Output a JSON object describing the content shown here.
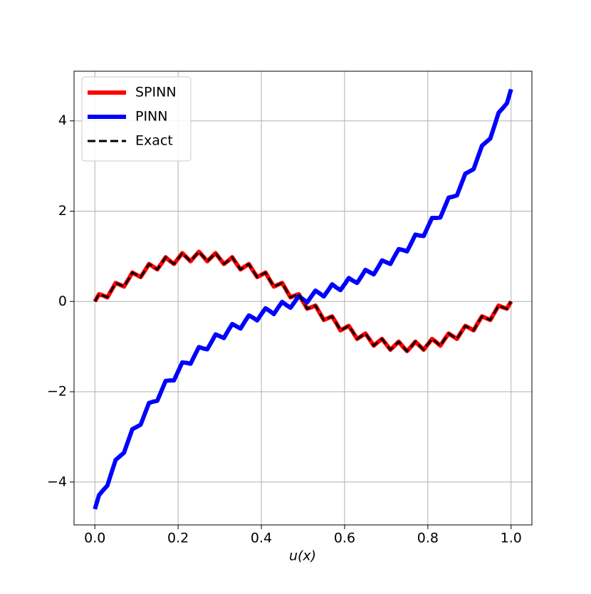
{
  "chart_data": {
    "type": "line",
    "xlabel": "u(x)",
    "x": [
      0,
      0.01,
      0.02,
      0.03,
      0.04,
      0.05,
      0.06,
      0.07,
      0.08,
      0.09,
      0.1,
      0.11,
      0.12,
      0.13,
      0.14,
      0.15,
      0.16,
      0.17,
      0.18,
      0.19,
      0.2,
      0.21,
      0.22,
      0.23,
      0.24,
      0.25,
      0.26,
      0.27,
      0.28,
      0.29,
      0.3,
      0.31,
      0.32,
      0.33,
      0.34,
      0.35,
      0.36,
      0.37,
      0.38,
      0.39,
      0.4,
      0.41,
      0.42,
      0.43,
      0.44,
      0.45,
      0.46,
      0.47,
      0.48,
      0.49,
      0.5,
      0.51,
      0.52,
      0.53,
      0.54,
      0.55,
      0.56,
      0.57,
      0.58,
      0.59,
      0.6,
      0.61,
      0.62,
      0.63,
      0.64,
      0.65,
      0.66,
      0.67,
      0.68,
      0.69,
      0.7,
      0.71,
      0.72,
      0.73,
      0.74,
      0.75,
      0.76,
      0.77,
      0.78,
      0.79,
      0.8,
      0.81,
      0.82,
      0.83,
      0.84,
      0.85,
      0.86,
      0.87,
      0.88,
      0.89,
      0.9,
      0.91,
      0.92,
      0.93,
      0.94,
      0.95,
      0.96,
      0.97,
      0.98,
      0.99,
      1
    ],
    "series": [
      {
        "name": "SPINN",
        "color": "#ff0000",
        "linestyle": "solid",
        "values": [
          0,
          0.16,
          0.13,
          0.09,
          0.25,
          0.41,
          0.37,
          0.33,
          0.48,
          0.64,
          0.59,
          0.54,
          0.68,
          0.83,
          0.77,
          0.71,
          0.84,
          0.98,
          0.9,
          0.83,
          0.95,
          1.07,
          0.98,
          0.89,
          1.0,
          1.1,
          1.0,
          0.89,
          0.98,
          1.07,
          0.95,
          0.83,
          0.9,
          0.98,
          0.84,
          0.71,
          0.77,
          0.83,
          0.68,
          0.54,
          0.59,
          0.64,
          0.48,
          0.33,
          0.37,
          0.41,
          0.25,
          0.09,
          0.13,
          0.16,
          0,
          -0.16,
          -0.13,
          -0.09,
          -0.25,
          -0.41,
          -0.37,
          -0.33,
          -0.48,
          -0.64,
          -0.59,
          -0.54,
          -0.68,
          -0.83,
          -0.77,
          -0.71,
          -0.84,
          -0.98,
          -0.9,
          -0.83,
          -0.95,
          -1.07,
          -0.98,
          -0.89,
          -1.0,
          -1.1,
          -1.0,
          -0.89,
          -0.98,
          -1.07,
          -0.95,
          -0.83,
          -0.9,
          -0.98,
          -0.84,
          -0.71,
          -0.77,
          -0.83,
          -0.68,
          -0.54,
          -0.59,
          -0.64,
          -0.48,
          -0.33,
          -0.37,
          -0.41,
          -0.25,
          -0.09,
          -0.13,
          -0.16,
          0
        ]
      },
      {
        "name": "PINN",
        "color": "#0000ff",
        "linestyle": "solid",
        "values": [
          -4.6,
          -4.29,
          -4.18,
          -4.08,
          -3.79,
          -3.51,
          -3.43,
          -3.35,
          -3.09,
          -2.83,
          -2.78,
          -2.73,
          -2.49,
          -2.25,
          -2.22,
          -2.2,
          -1.98,
          -1.76,
          -1.75,
          -1.75,
          -1.55,
          -1.35,
          -1.36,
          -1.38,
          -1.19,
          -1.01,
          -1.04,
          -1.06,
          -0.9,
          -0.73,
          -0.77,
          -0.81,
          -0.65,
          -0.5,
          -0.55,
          -0.6,
          -0.45,
          -0.31,
          -0.36,
          -0.42,
          -0.28,
          -0.15,
          -0.21,
          -0.28,
          -0.14,
          -0.01,
          -0.08,
          -0.14,
          -0.01,
          0.12,
          0.05,
          -0.02,
          0.11,
          0.24,
          0.18,
          0.11,
          0.24,
          0.38,
          0.31,
          0.25,
          0.38,
          0.52,
          0.46,
          0.41,
          0.55,
          0.7,
          0.65,
          0.6,
          0.75,
          0.91,
          0.87,
          0.83,
          1.0,
          1.16,
          1.14,
          1.11,
          1.29,
          1.48,
          1.46,
          1.45,
          1.65,
          1.85,
          1.85,
          1.86,
          2.08,
          2.3,
          2.32,
          2.35,
          2.59,
          2.83,
          2.88,
          2.93,
          3.19,
          3.45,
          3.53,
          3.61,
          3.89,
          4.18,
          4.28,
          4.39,
          4.7
        ]
      },
      {
        "name": "Exact",
        "color": "#000000",
        "linestyle": "dashed",
        "values": [
          0,
          0.16,
          0.13,
          0.09,
          0.25,
          0.41,
          0.37,
          0.33,
          0.48,
          0.64,
          0.59,
          0.54,
          0.68,
          0.83,
          0.77,
          0.71,
          0.84,
          0.98,
          0.9,
          0.83,
          0.95,
          1.07,
          0.98,
          0.89,
          1.0,
          1.1,
          1.0,
          0.89,
          0.98,
          1.07,
          0.95,
          0.83,
          0.9,
          0.98,
          0.84,
          0.71,
          0.77,
          0.83,
          0.68,
          0.54,
          0.59,
          0.64,
          0.48,
          0.33,
          0.37,
          0.41,
          0.25,
          0.09,
          0.13,
          0.16,
          0,
          -0.16,
          -0.13,
          -0.09,
          -0.25,
          -0.41,
          -0.37,
          -0.33,
          -0.48,
          -0.64,
          -0.59,
          -0.54,
          -0.68,
          -0.83,
          -0.77,
          -0.71,
          -0.84,
          -0.98,
          -0.9,
          -0.83,
          -0.95,
          -1.07,
          -0.98,
          -0.89,
          -1.0,
          -1.1,
          -1.0,
          -0.89,
          -0.98,
          -1.07,
          -0.95,
          -0.83,
          -0.9,
          -0.98,
          -0.84,
          -0.71,
          -0.77,
          -0.83,
          -0.68,
          -0.54,
          -0.59,
          -0.64,
          -0.48,
          -0.33,
          -0.37,
          -0.41,
          -0.25,
          -0.09,
          -0.13,
          -0.16,
          0
        ]
      }
    ],
    "xlim": [
      -0.05,
      1.05
    ],
    "ylim": [
      -4.95,
      5.1
    ],
    "xticks": [
      {
        "value": 0,
        "label": "0.0"
      },
      0.2,
      0.4,
      0.6,
      0.8,
      {
        "value": 1,
        "label": "1.0"
      }
    ],
    "yticks": [
      {
        "value": -4,
        "label": "−4"
      },
      {
        "value": -2,
        "label": "−2"
      },
      0,
      2,
      4
    ],
    "grid": true,
    "legend": "upper left"
  }
}
